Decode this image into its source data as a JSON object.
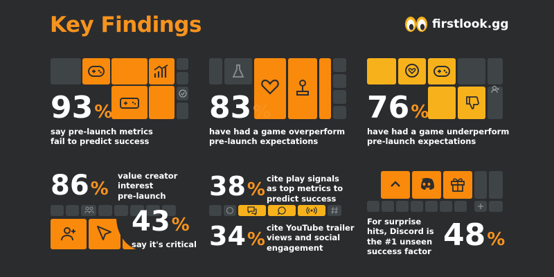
{
  "header": {
    "title": "Key Findings",
    "brand": "firstlook.gg"
  },
  "stats": [
    {
      "id": "s93",
      "value": "93",
      "unit": "%",
      "caption_l1": "say pre-launch metrics",
      "caption_l2": "fail to predict success"
    },
    {
      "id": "s83",
      "value": "83",
      "unit": "%",
      "caption_l1": "have had a game overperform",
      "caption_l2": "pre-launch expectations"
    },
    {
      "id": "s76",
      "value": "76",
      "unit": "%",
      "caption_l1": "have had a game underperform",
      "caption_l2": "pre-launch expectations"
    },
    {
      "id": "s86",
      "value": "86",
      "unit": "%",
      "caption_l1": "value creator",
      "caption_l2": "interest",
      "caption_l3": "pre-launch"
    },
    {
      "id": "s43",
      "value": "43",
      "unit": "%",
      "caption_l1": "say it's critical"
    },
    {
      "id": "s38",
      "value": "38",
      "unit": "%",
      "caption_l1": "cite play signals",
      "caption_l2": "as top metrics to",
      "caption_l3": "predict success"
    },
    {
      "id": "s34",
      "value": "34",
      "unit": "%",
      "caption_l1": "cite YouTube trailer",
      "caption_l2": "views and social",
      "caption_l3": "engagement"
    },
    {
      "id": "s48",
      "value": "48",
      "unit": "%",
      "caption_l1": "For surprise",
      "caption_l2": "hits, Discord is",
      "caption_l3": "the #1 unseen",
      "caption_l4": "success factor"
    }
  ],
  "colors": {
    "background": "#2b2c2e",
    "orange": "#f98a0c",
    "yellow": "#f7b21b",
    "grey_tile": "#3f4447",
    "accent_text": "#f7931e"
  }
}
